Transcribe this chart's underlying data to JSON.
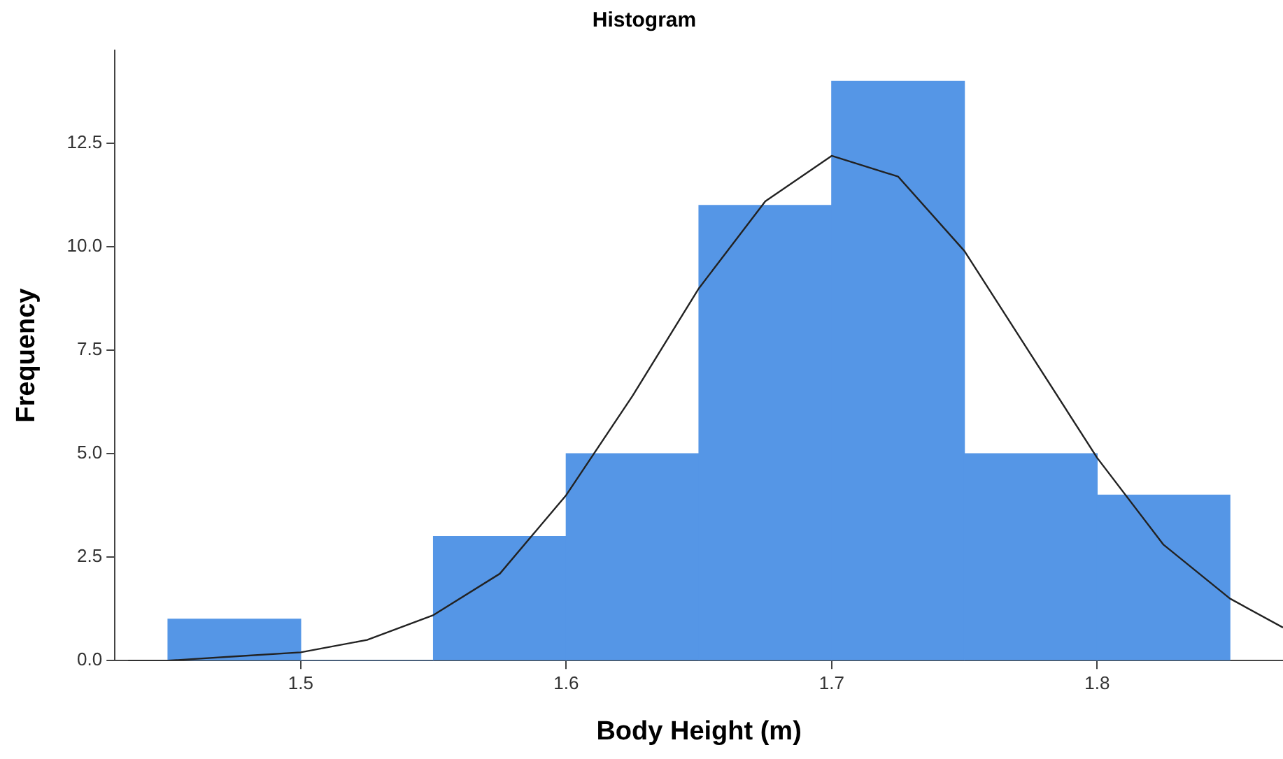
{
  "chart_data": {
    "type": "histogram",
    "title": "Histogram",
    "xlabel": "Body Height (m)",
    "ylabel": "Frequency",
    "bins": [
      1.45,
      1.5,
      1.55,
      1.6,
      1.65,
      1.7,
      1.75,
      1.8,
      1.85
    ],
    "values": [
      1,
      0,
      3,
      5,
      11,
      14,
      5,
      4
    ],
    "color": "#5596e6",
    "series": [
      {
        "type": "line",
        "color": "#222222",
        "x": [
          1.435,
          1.45,
          1.475,
          1.5,
          1.525,
          1.55,
          1.575,
          1.6,
          1.625,
          1.65,
          1.675,
          1.7,
          1.725,
          1.75,
          1.775,
          1.8,
          1.825,
          1.85,
          1.87
        ],
        "values": [
          0.0,
          0.0,
          0.1,
          0.2,
          0.5,
          1.1,
          2.1,
          4.0,
          6.4,
          9.0,
          11.1,
          12.2,
          11.7,
          9.9,
          7.4,
          4.9,
          2.8,
          1.5,
          0.8
        ]
      }
    ],
    "xlim": [
      1.43,
      1.87
    ],
    "xticks": [
      1.5,
      1.6,
      1.7,
      1.8
    ],
    "ylim": [
      0,
      14.75
    ],
    "yticks": [
      {
        "value": 0,
        "label": "0.0"
      },
      {
        "value": 2.5,
        "label": "2.5"
      },
      {
        "value": 5,
        "label": "5.0"
      },
      {
        "value": 7.5,
        "label": "7.5"
      },
      {
        "value": 10,
        "label": "10.0"
      },
      {
        "value": 12.5,
        "label": "12.5"
      }
    ],
    "grid": false,
    "legend": false
  }
}
